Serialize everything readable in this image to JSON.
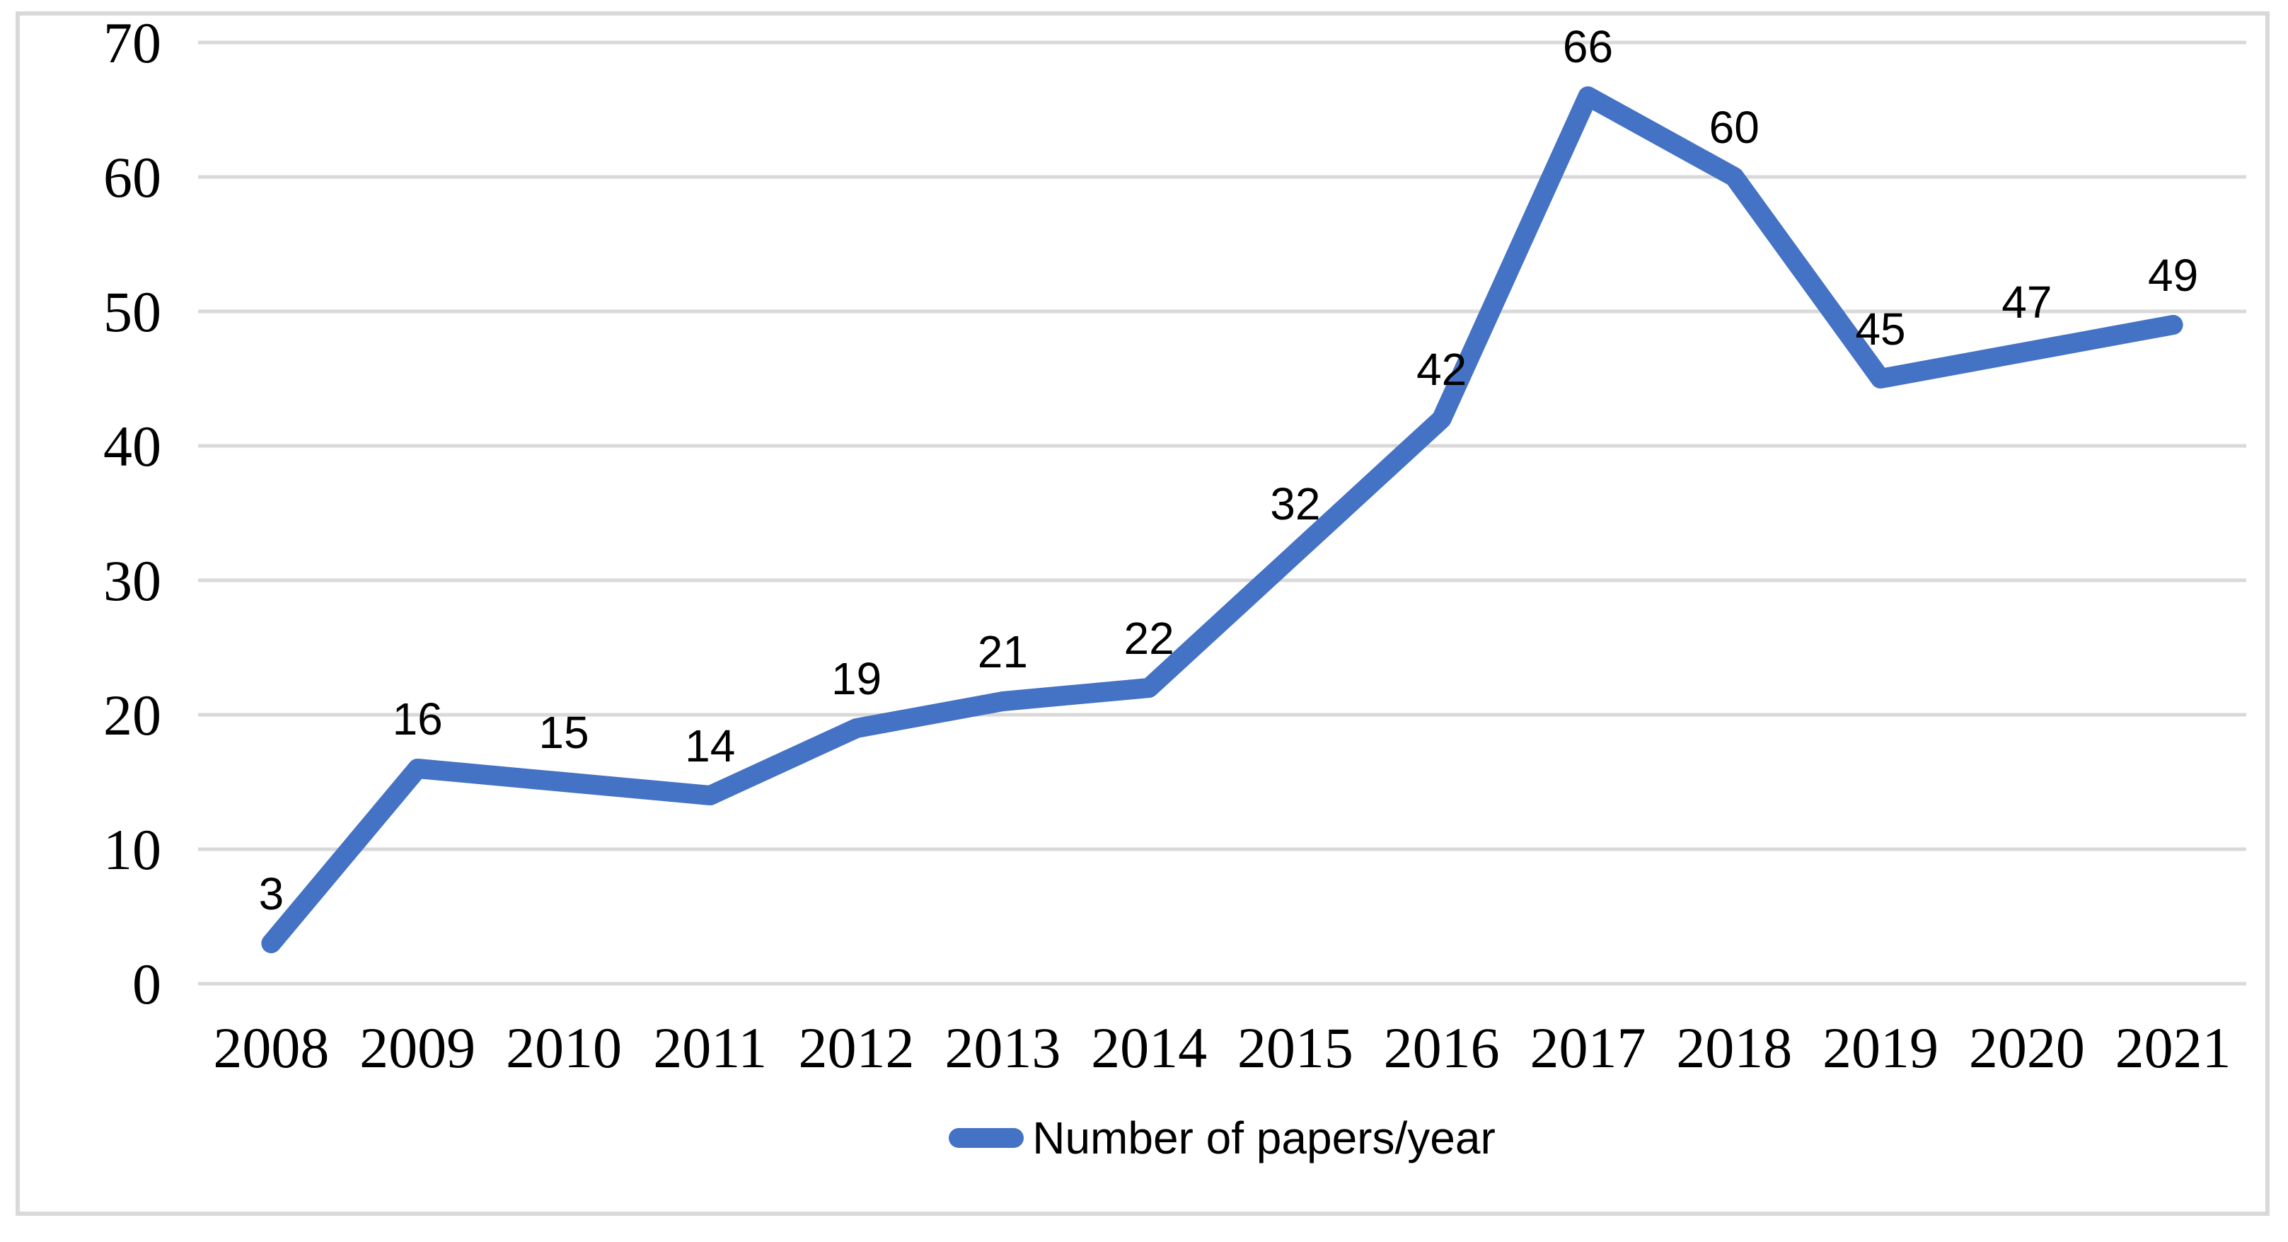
{
  "chart_data": {
    "type": "line",
    "title": "",
    "xlabel": "",
    "ylabel": "",
    "categories": [
      "2008",
      "2009",
      "2010",
      "2011",
      "2012",
      "2013",
      "2014",
      "2015",
      "2016",
      "2017",
      "2018",
      "2019",
      "2020",
      "2021"
    ],
    "series": [
      {
        "name": "Number of papers/year",
        "values": [
          3,
          16,
          15,
          14,
          19,
          21,
          22,
          32,
          42,
          66,
          60,
          45,
          47,
          49
        ]
      }
    ],
    "ylim": [
      0,
      70
    ],
    "ytick_step": 10,
    "yticks": [
      0,
      10,
      20,
      30,
      40,
      50,
      60,
      70
    ],
    "grid": "horizontal-only",
    "legend_position": "bottom-center",
    "data_labels": "above-points",
    "colors": {
      "line": "#4472C4",
      "gridline": "#D9D9D9",
      "frame_border": "#D9D9D9",
      "text": "#000000",
      "background": "#FFFFFF"
    }
  }
}
